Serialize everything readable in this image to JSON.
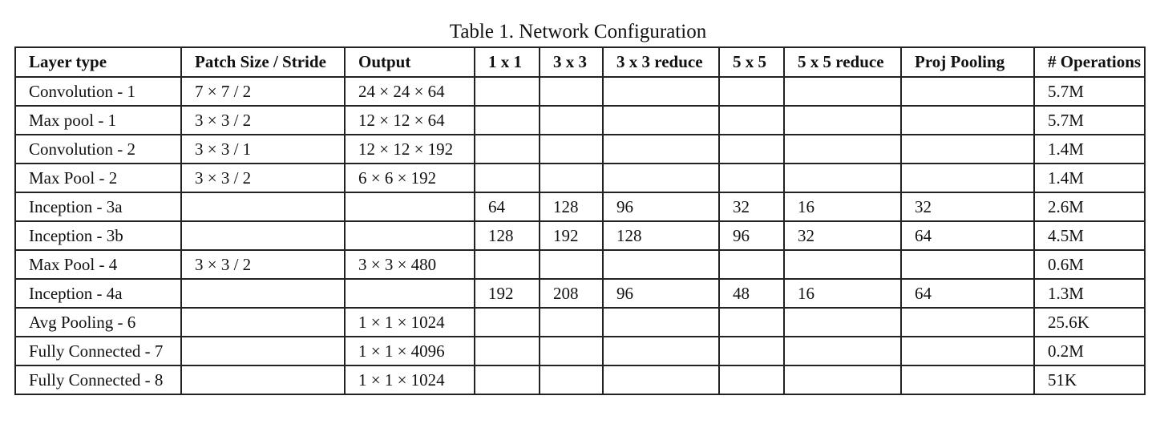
{
  "caption": "Table 1. Network Configuration",
  "columns": [
    "Layer type",
    "Patch Size / Stride",
    "Output",
    "1 x 1",
    "3 x 3",
    "3 x 3 reduce",
    "5 x 5",
    "5 x 5 reduce",
    "Proj Pooling",
    "# Operations"
  ],
  "rows": [
    [
      "Convolution - 1",
      "7 × 7 / 2",
      "24 × 24 × 64",
      "",
      "",
      "",
      "",
      "",
      "",
      "5.7M"
    ],
    [
      "Max pool - 1",
      "3 × 3 / 2",
      "12 × 12 × 64",
      "",
      "",
      "",
      "",
      "",
      "",
      "5.7M"
    ],
    [
      "Convolution - 2",
      "3 × 3 / 1",
      "12 × 12 × 192",
      "",
      "",
      "",
      "",
      "",
      "",
      "1.4M"
    ],
    [
      "Max Pool - 2",
      "3 × 3 / 2",
      "6 × 6 × 192",
      "",
      "",
      "",
      "",
      "",
      "",
      "1.4M"
    ],
    [
      "Inception - 3a",
      "",
      "",
      "64",
      "128",
      "96",
      "32",
      "16",
      "32",
      "2.6M"
    ],
    [
      "Inception - 3b",
      "",
      "",
      "128",
      "192",
      "128",
      "96",
      "32",
      "64",
      "4.5M"
    ],
    [
      "Max Pool - 4",
      "3 × 3 / 2",
      "3 × 3 × 480",
      "",
      "",
      "",
      "",
      "",
      "",
      "0.6M"
    ],
    [
      "Inception - 4a",
      "",
      "",
      "192",
      "208",
      "96",
      "48",
      "16",
      "64",
      "1.3M"
    ],
    [
      "Avg Pooling - 6",
      "",
      "1 × 1 × 1024",
      "",
      "",
      "",
      "",
      "",
      "",
      "25.6K"
    ],
    [
      "Fully Connected - 7",
      "",
      "1 × 1 × 4096",
      "",
      "",
      "",
      "",
      "",
      "",
      "0.2M"
    ],
    [
      "Fully Connected - 8",
      "",
      "1 × 1 × 1024",
      "",
      "",
      "",
      "",
      "",
      "",
      "51K"
    ]
  ]
}
